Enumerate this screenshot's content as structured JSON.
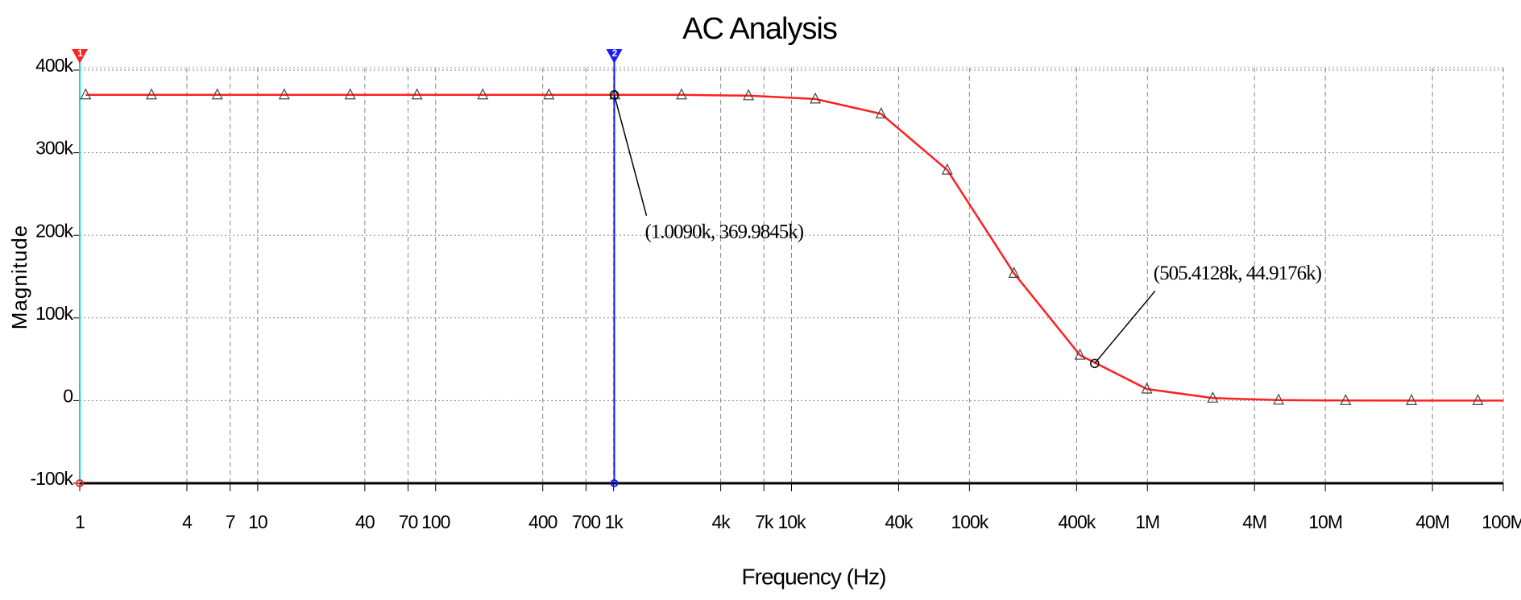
{
  "chart_data": {
    "type": "line",
    "title": "AC Analysis",
    "x_label": "Frequency (Hz)",
    "y_label": "Magnitude",
    "xscale": "log",
    "grid": true,
    "color": "#ff2020",
    "x": [
      1.08,
      2.53,
      5.93,
      14.1,
      33.1,
      78.6,
      184,
      433,
      1016,
      2410,
      5730,
      13600,
      31900,
      75000,
      178000,
      418000,
      993000,
      2330000,
      5460000,
      13000000,
      30500000,
      72000000
    ],
    "values": [
      370000,
      370000,
      370000,
      370000,
      370000,
      370000,
      370000,
      370000,
      370000,
      370000,
      369000,
      365000,
      347000,
      279000,
      154000,
      55000,
      14000,
      3000,
      600,
      100,
      0,
      0
    ],
    "xlim": [
      1,
      100000000
    ],
    "ylim": [
      -100000,
      400000
    ],
    "xticks": [
      1,
      4,
      7,
      10,
      40,
      70,
      100,
      400,
      700,
      {
        "value": 1000,
        "label": "1k"
      },
      {
        "value": 4000,
        "label": "4k"
      },
      {
        "value": 7000,
        "label": "7k"
      },
      {
        "value": 10000,
        "label": "10k"
      },
      {
        "value": 40000,
        "label": "40k"
      },
      {
        "value": 100000,
        "label": "100k"
      },
      {
        "value": 400000,
        "label": "400k"
      },
      {
        "value": 1000000,
        "label": "1M"
      },
      {
        "value": 4000000,
        "label": "4M"
      },
      {
        "value": 10000000,
        "label": "10M"
      },
      {
        "value": 40000000,
        "label": "40M"
      },
      {
        "value": 100000000,
        "label": "100M"
      }
    ],
    "yticks": [
      {
        "value": -100000,
        "label": "-100k"
      },
      0,
      {
        "value": 100000,
        "label": "100k"
      },
      {
        "value": 200000,
        "label": "200k"
      },
      {
        "value": 300000,
        "label": "300k"
      },
      {
        "value": 400000,
        "label": "400k"
      }
    ],
    "cursors": [
      {
        "label": "1",
        "x": 1,
        "color": "#00d8f0",
        "marker_color": "#ff2020"
      },
      {
        "label": "2",
        "x": 1009,
        "color": "#1a1aff",
        "marker_color": "#1a1aff"
      }
    ],
    "annotations": [
      {
        "text": "(1.0090k, 369.9845k)",
        "x": 1009,
        "y": 369984.5
      },
      {
        "text": "(505.4128k, 44.9176k)",
        "x": 505412.8,
        "y": 44917.6
      }
    ]
  }
}
